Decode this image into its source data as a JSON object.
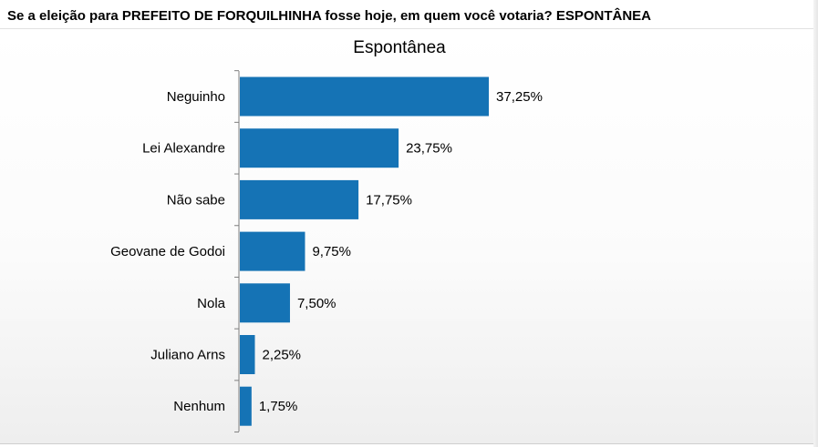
{
  "question": "Se a eleição para PREFEITO DE FORQUILHINHA fosse hoje, em quem você votaria? ESPONTÂNEA",
  "chart_data": {
    "type": "bar",
    "orientation": "horizontal",
    "title": "Espontânea",
    "categories": [
      "Neguinho",
      "Lei Alexandre",
      "Não sabe",
      "Geovane de Godoi",
      "Nola",
      "Juliano Arns",
      "Nenhum"
    ],
    "values": [
      37.25,
      23.75,
      17.75,
      9.75,
      7.5,
      2.25,
      1.75
    ],
    "value_labels": [
      "37,25%",
      "23,75%",
      "17,75%",
      "9,75%",
      "7,50%",
      "2,25%",
      "1,75%"
    ],
    "unit": "%",
    "bar_color": "#1573b5",
    "grid": false,
    "legend": "none"
  }
}
